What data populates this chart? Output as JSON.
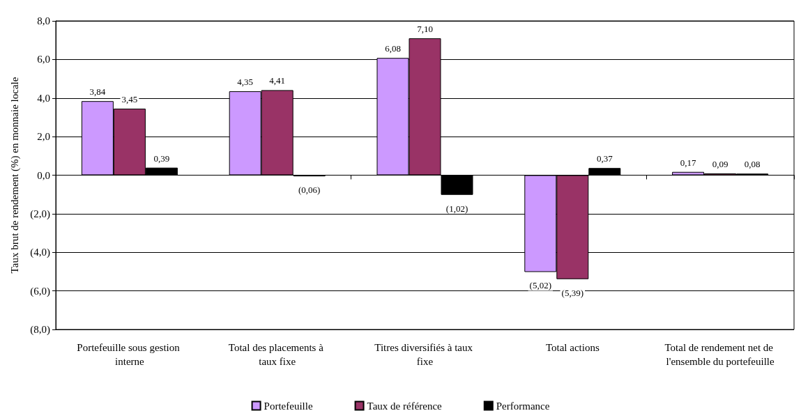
{
  "chart_data": {
    "type": "bar",
    "ylabel": "Taux brut de rendement (%) en monnaie locale",
    "categories": [
      "Portefeuille sous gestion interne",
      "Total des placements à taux fixe",
      "Titres diversifiés à taux fixe",
      "Total actions",
      "Total de rendement net de l'ensemble du portefeuille"
    ],
    "series": [
      {
        "name": "Portefeuille",
        "color": "#cc99ff",
        "values": [
          3.84,
          4.35,
          6.08,
          -5.02,
          0.17
        ],
        "value_labels": [
          "3,84",
          "4,35",
          "6,08",
          "(5,02)",
          "0,17"
        ]
      },
      {
        "name": "Taux de référence",
        "color": "#993366",
        "values": [
          3.45,
          4.41,
          7.1,
          -5.39,
          0.09
        ],
        "value_labels": [
          "3,45",
          "4,41",
          "7,10",
          "(5,39)",
          "0,09"
        ]
      },
      {
        "name": "Performance",
        "color": "#000000",
        "values": [
          0.39,
          -0.06,
          -1.02,
          0.37,
          0.08
        ],
        "value_labels": [
          "0,39",
          "(0,06)",
          "(1,02)",
          "0,37",
          "0,08"
        ]
      }
    ],
    "ylim": [
      -8,
      8
    ],
    "yticks": [
      {
        "value": -8,
        "label": "(8,0)"
      },
      {
        "value": -6,
        "label": "(6,0)"
      },
      {
        "value": -4,
        "label": "(4,0)"
      },
      {
        "value": -2,
        "label": "(2,0)"
      },
      {
        "value": 0,
        "label": "0,0"
      },
      {
        "value": 2,
        "label": "2,0"
      },
      {
        "value": 4,
        "label": "4,0"
      },
      {
        "value": 6,
        "label": "6,0"
      },
      {
        "value": 8,
        "label": "8,0"
      }
    ],
    "grid": "y",
    "legend": "bottom"
  }
}
